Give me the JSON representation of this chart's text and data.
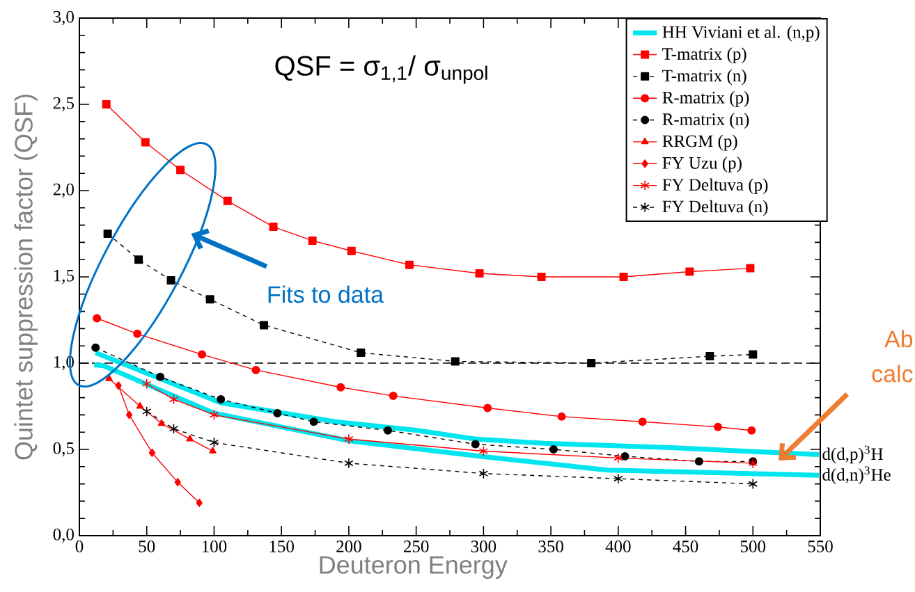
{
  "chart_data": {
    "type": "line",
    "title": "QSF = σ$_{1,1}$/ σ$_{unpol}$",
    "xlabel": "Deuteron Energy",
    "ylabel": "Quintet suppression factor (QSF)",
    "xlim": [
      0,
      550
    ],
    "ylim": [
      0,
      3
    ],
    "xticks": [
      0,
      50,
      100,
      150,
      200,
      250,
      300,
      350,
      400,
      450,
      500,
      550
    ],
    "yticks": [
      {
        "value": 0,
        "label": "0,0"
      },
      {
        "value": 0.5,
        "label": "0,5"
      },
      {
        "value": 1,
        "label": "1,0"
      },
      {
        "value": 1.5,
        "label": "1,5"
      },
      {
        "value": 2,
        "label": "2,0"
      },
      {
        "value": 2.5,
        "label": "2,5"
      },
      {
        "value": 3,
        "label": "3,0"
      }
    ],
    "legend": "top right",
    "ref_lines": [
      {
        "axis": "y",
        "value": 1,
        "color": "#000000",
        "line_style": "dashed"
      }
    ],
    "series": [
      {
        "name": "HH Viviani et al. (n,p)",
        "color": "#00e5ee",
        "marker": "none",
        "line_style": "solid",
        "x": [
          12,
          60,
          105,
          190,
          251,
          294,
          345,
          439,
          549
        ],
        "values": [
          1.06,
          0.91,
          0.77,
          0.66,
          0.61,
          0.56,
          0.535,
          0.51,
          0.47
        ]
      },
      {
        "color": "#00e5ee",
        "marker": "none",
        "line_style": "solid",
        "x": [
          11,
          18,
          64,
          100,
          200,
          298,
          392,
          549
        ],
        "values": [
          0.99,
          0.985,
          0.83,
          0.71,
          0.55,
          0.46,
          0.38,
          0.35
        ]
      },
      {
        "name": "T-matrix (p)",
        "color": "#ff0000",
        "marker": "square",
        "line_style": "solid",
        "x": [
          20,
          49,
          75,
          110,
          144,
          173,
          202,
          245,
          297,
          343,
          404,
          453,
          498
        ],
        "values": [
          2.5,
          2.28,
          2.12,
          1.94,
          1.79,
          1.71,
          1.65,
          1.57,
          1.52,
          1.5,
          1.5,
          1.53,
          1.55
        ]
      },
      {
        "name": "T-matrix (n)",
        "color": "#000000",
        "marker": "square",
        "line_style": "dashed",
        "x": [
          21,
          44,
          68,
          97,
          137,
          209,
          279,
          380,
          468,
          500
        ],
        "values": [
          1.75,
          1.6,
          1.48,
          1.37,
          1.22,
          1.06,
          1.01,
          1.0,
          1.04,
          1.05
        ]
      },
      {
        "name": "R-matrix (p)",
        "color": "#ff0000",
        "marker": "circle",
        "line_style": "solid",
        "x": [
          13,
          43,
          91,
          131,
          194,
          233,
          303,
          358,
          418,
          474,
          499
        ],
        "values": [
          1.26,
          1.17,
          1.05,
          0.96,
          0.86,
          0.81,
          0.74,
          0.69,
          0.66,
          0.63,
          0.61
        ]
      },
      {
        "name": "R-matrix (n)",
        "color": "#000000",
        "marker": "circle",
        "line_style": "dashed",
        "x": [
          12,
          60,
          105,
          147,
          174,
          229,
          294,
          352,
          405,
          460,
          500
        ],
        "values": [
          1.09,
          0.92,
          0.79,
          0.71,
          0.66,
          0.61,
          0.53,
          0.5,
          0.46,
          0.43,
          0.43
        ]
      },
      {
        "name": "RRGM (p)",
        "color": "#ff0000",
        "marker": "triangle",
        "line_style": "solid",
        "x": [
          22,
          45,
          61,
          82,
          99
        ],
        "values": [
          0.91,
          0.75,
          0.65,
          0.56,
          0.49
        ]
      },
      {
        "name": "FY Uzu (p)",
        "color": "#ff0000",
        "marker": "diamond",
        "line_style": "solid",
        "x": [
          29,
          37,
          54,
          73,
          89
        ],
        "values": [
          0.87,
          0.7,
          0.48,
          0.31,
          0.19
        ]
      },
      {
        "name": "FY Deltuva (p)",
        "color": "#ff0000",
        "marker": "cross",
        "line_style": "solid",
        "x": [
          50,
          70,
          100,
          200,
          300,
          400,
          500
        ],
        "values": [
          0.88,
          0.79,
          0.7,
          0.56,
          0.49,
          0.45,
          0.42
        ]
      },
      {
        "name": "FY Deltuva (n)",
        "color": "#000000",
        "marker": "cross",
        "line_style": "dashed",
        "x": [
          50,
          70,
          100,
          200,
          300,
          400,
          500
        ],
        "values": [
          0.72,
          0.62,
          0.54,
          0.42,
          0.36,
          0.33,
          0.3
        ]
      }
    ],
    "annotations": [
      "Fits to data",
      "Ab",
      "calc",
      {
        "text": "d(d,p)$^{3}$H",
        "x": 550,
        "y": 0.47
      },
      {
        "text": "d(d,n)$^{3}$He",
        "x": 550,
        "y": 0.35
      }
    ]
  }
}
